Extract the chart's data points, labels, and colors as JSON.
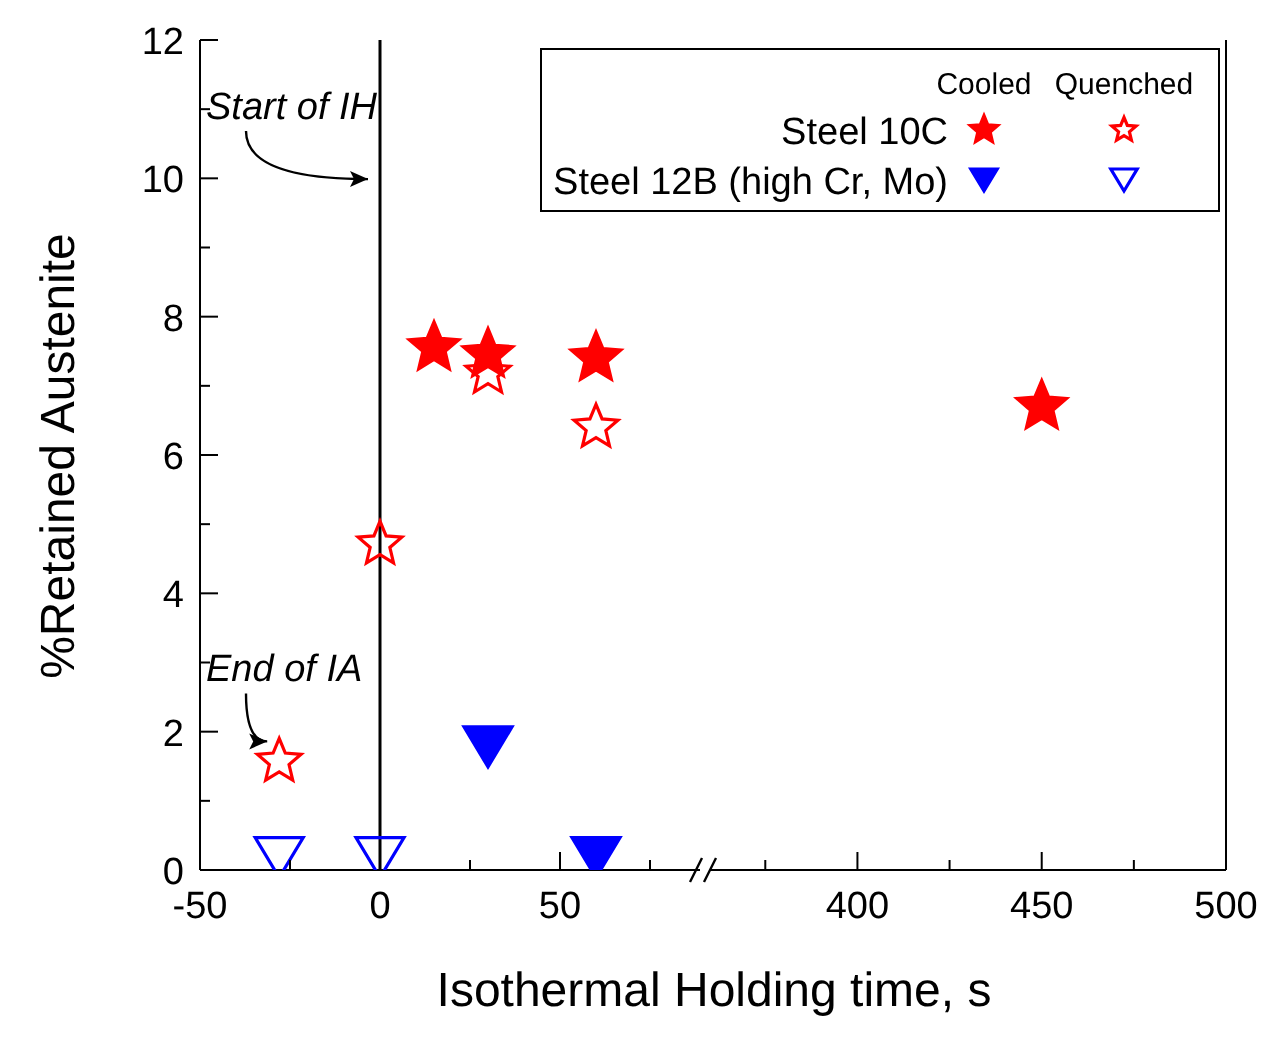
{
  "chart_data": [
    {
      "type": "scatter",
      "xlabel": "Isothermal Holding time, s",
      "ylabel": "%Retained Austenite",
      "xlim": [
        -50,
        90
      ],
      "xticks": [
        -50,
        {
          "value": -25,
          "label": null
        },
        0,
        {
          "value": 25,
          "label": null
        },
        50,
        {
          "value": 75,
          "label": null
        }
      ],
      "ylim": [
        0,
        12
      ],
      "yticks": [
        0,
        {
          "value": 1,
          "label": null
        },
        2,
        {
          "value": 3,
          "label": null
        },
        4,
        {
          "value": 5,
          "label": null
        },
        6,
        {
          "value": 7,
          "label": null
        },
        8,
        {
          "value": 9,
          "label": null
        },
        10,
        {
          "value": 11,
          "label": null
        },
        12
      ],
      "grid": false,
      "legend": "top right",
      "ref_lines": [
        {
          "axis": "x",
          "value": 0,
          "color": "#000000"
        }
      ],
      "annotations": [
        {
          "text": "Start of IH",
          "x": 0,
          "y": 9.7
        },
        {
          "text": "End of IA",
          "x": -28,
          "y": 1.57
        },
        "Cooled",
        "Quenched"
      ],
      "series": [
        {
          "name": "Steel 10C",
          "color": "#ff0000",
          "marker": "star",
          "x": [
            15,
            30,
            60
          ],
          "values": [
            7.55,
            7.45,
            7.4
          ]
        },
        {
          "color": "#ff0000",
          "marker": "star",
          "x": [
            -28,
            0,
            30,
            60
          ],
          "values": [
            1.57,
            4.71,
            7.18,
            6.4
          ]
        },
        {
          "name": "Steel 12B (high Cr, Mo)",
          "color": "#0000ff",
          "marker": "triangle",
          "x": [
            30,
            60
          ],
          "values": [
            1.78,
            0.18
          ]
        },
        {
          "color": "#0000ff",
          "marker": "triangle",
          "x": [
            -28,
            0
          ],
          "values": [
            0.18,
            0.18
          ]
        }
      ]
    },
    {
      "type": "scatter",
      "xlim": [
        360,
        500
      ],
      "xticks": [
        {
          "value": 375,
          "label": null
        },
        400,
        {
          "value": 425,
          "label": null
        },
        450,
        {
          "value": 475,
          "label": null
        },
        500
      ],
      "ylim": [
        0,
        12
      ],
      "yticks": [
        0,
        2,
        4,
        6,
        8,
        10,
        12
      ],
      "tick_labels": "x",
      "series": [
        {
          "color": "#ff0000",
          "marker": "star",
          "x": [
            450
          ],
          "values": [
            6.7
          ]
        }
      ]
    }
  ]
}
